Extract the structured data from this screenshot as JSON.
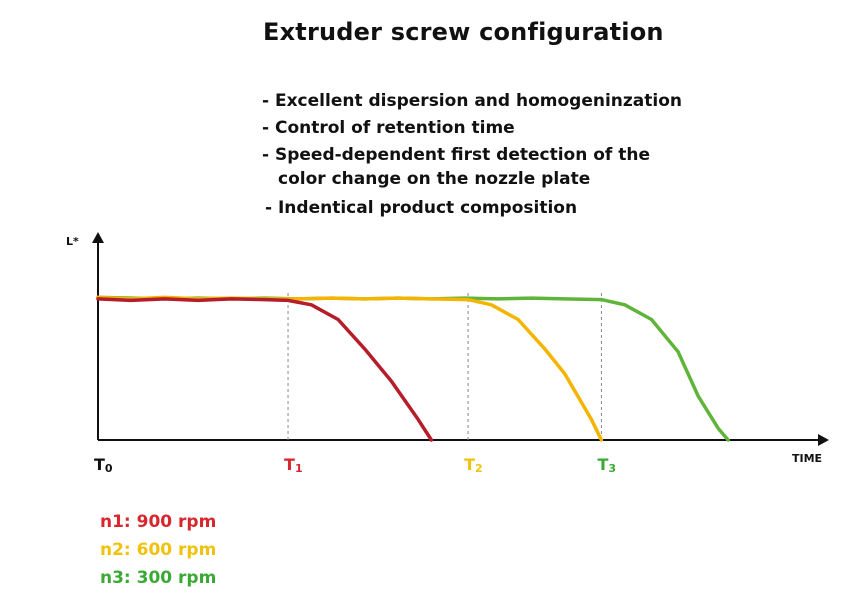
{
  "header": {
    "title": "Extruder screw configuration",
    "bullets": [
      "- Excellent dispersion and homogeninzation",
      "- Control of retention time",
      "- Speed-dependent first detection of the",
      "color change on the nozzle plate",
      "- Indentical product composition"
    ]
  },
  "legend": [
    {
      "label": "n1: 900 rpm",
      "color": "#d7262e"
    },
    {
      "label": "n2: 600 rpm",
      "color": "#f0c20c"
    },
    {
      "label": "n3: 300 rpm",
      "color": "#3aaa35"
    }
  ],
  "chart_data": {
    "type": "line",
    "title": "Extruder screw configuration",
    "xlabel": "TIME",
    "ylabel": "L*",
    "grid": false,
    "xlim": [
      0,
      10
    ],
    "ylim": [
      0,
      1
    ],
    "x_marks": [
      {
        "label": "T0",
        "x": 0,
        "color": "#111111"
      },
      {
        "label": "T1",
        "x": 2.85,
        "color": "#d7262e"
      },
      {
        "label": "T2",
        "x": 5.55,
        "color": "#f0c20c"
      },
      {
        "label": "T3",
        "x": 7.55,
        "color": "#3aaa35"
      }
    ],
    "series": [
      {
        "name": "n1: 900 rpm",
        "color": "#b51d2a",
        "x": [
          0,
          0.5,
          1,
          1.5,
          2,
          2.5,
          2.85,
          3.2,
          3.6,
          4.0,
          4.4,
          4.8,
          5.0
        ],
        "y": [
          0.96,
          0.95,
          0.96,
          0.95,
          0.96,
          0.955,
          0.95,
          0.92,
          0.82,
          0.62,
          0.4,
          0.14,
          0.0
        ]
      },
      {
        "name": "n2: 600 rpm",
        "color": "#f4b400",
        "x": [
          0,
          0.5,
          1,
          1.5,
          2,
          2.5,
          3,
          3.5,
          4,
          4.5,
          5,
          5.55,
          5.9,
          6.3,
          6.7,
          7.0,
          7.4,
          7.55
        ],
        "y": [
          0.97,
          0.96,
          0.97,
          0.96,
          0.965,
          0.96,
          0.96,
          0.965,
          0.96,
          0.965,
          0.96,
          0.955,
          0.92,
          0.82,
          0.62,
          0.45,
          0.14,
          0.0
        ]
      },
      {
        "name": "n3: 300 rpm",
        "color": "#5fb43a",
        "x": [
          0,
          0.5,
          1,
          1.5,
          2,
          2.5,
          3,
          3.5,
          4,
          4.5,
          5,
          5.5,
          6,
          6.5,
          7,
          7.55,
          7.9,
          8.3,
          8.7,
          9.0,
          9.3,
          9.45
        ],
        "y": [
          0.97,
          0.965,
          0.96,
          0.965,
          0.96,
          0.965,
          0.96,
          0.965,
          0.96,
          0.965,
          0.96,
          0.965,
          0.96,
          0.965,
          0.96,
          0.955,
          0.92,
          0.82,
          0.6,
          0.3,
          0.08,
          0.0
        ]
      }
    ]
  }
}
